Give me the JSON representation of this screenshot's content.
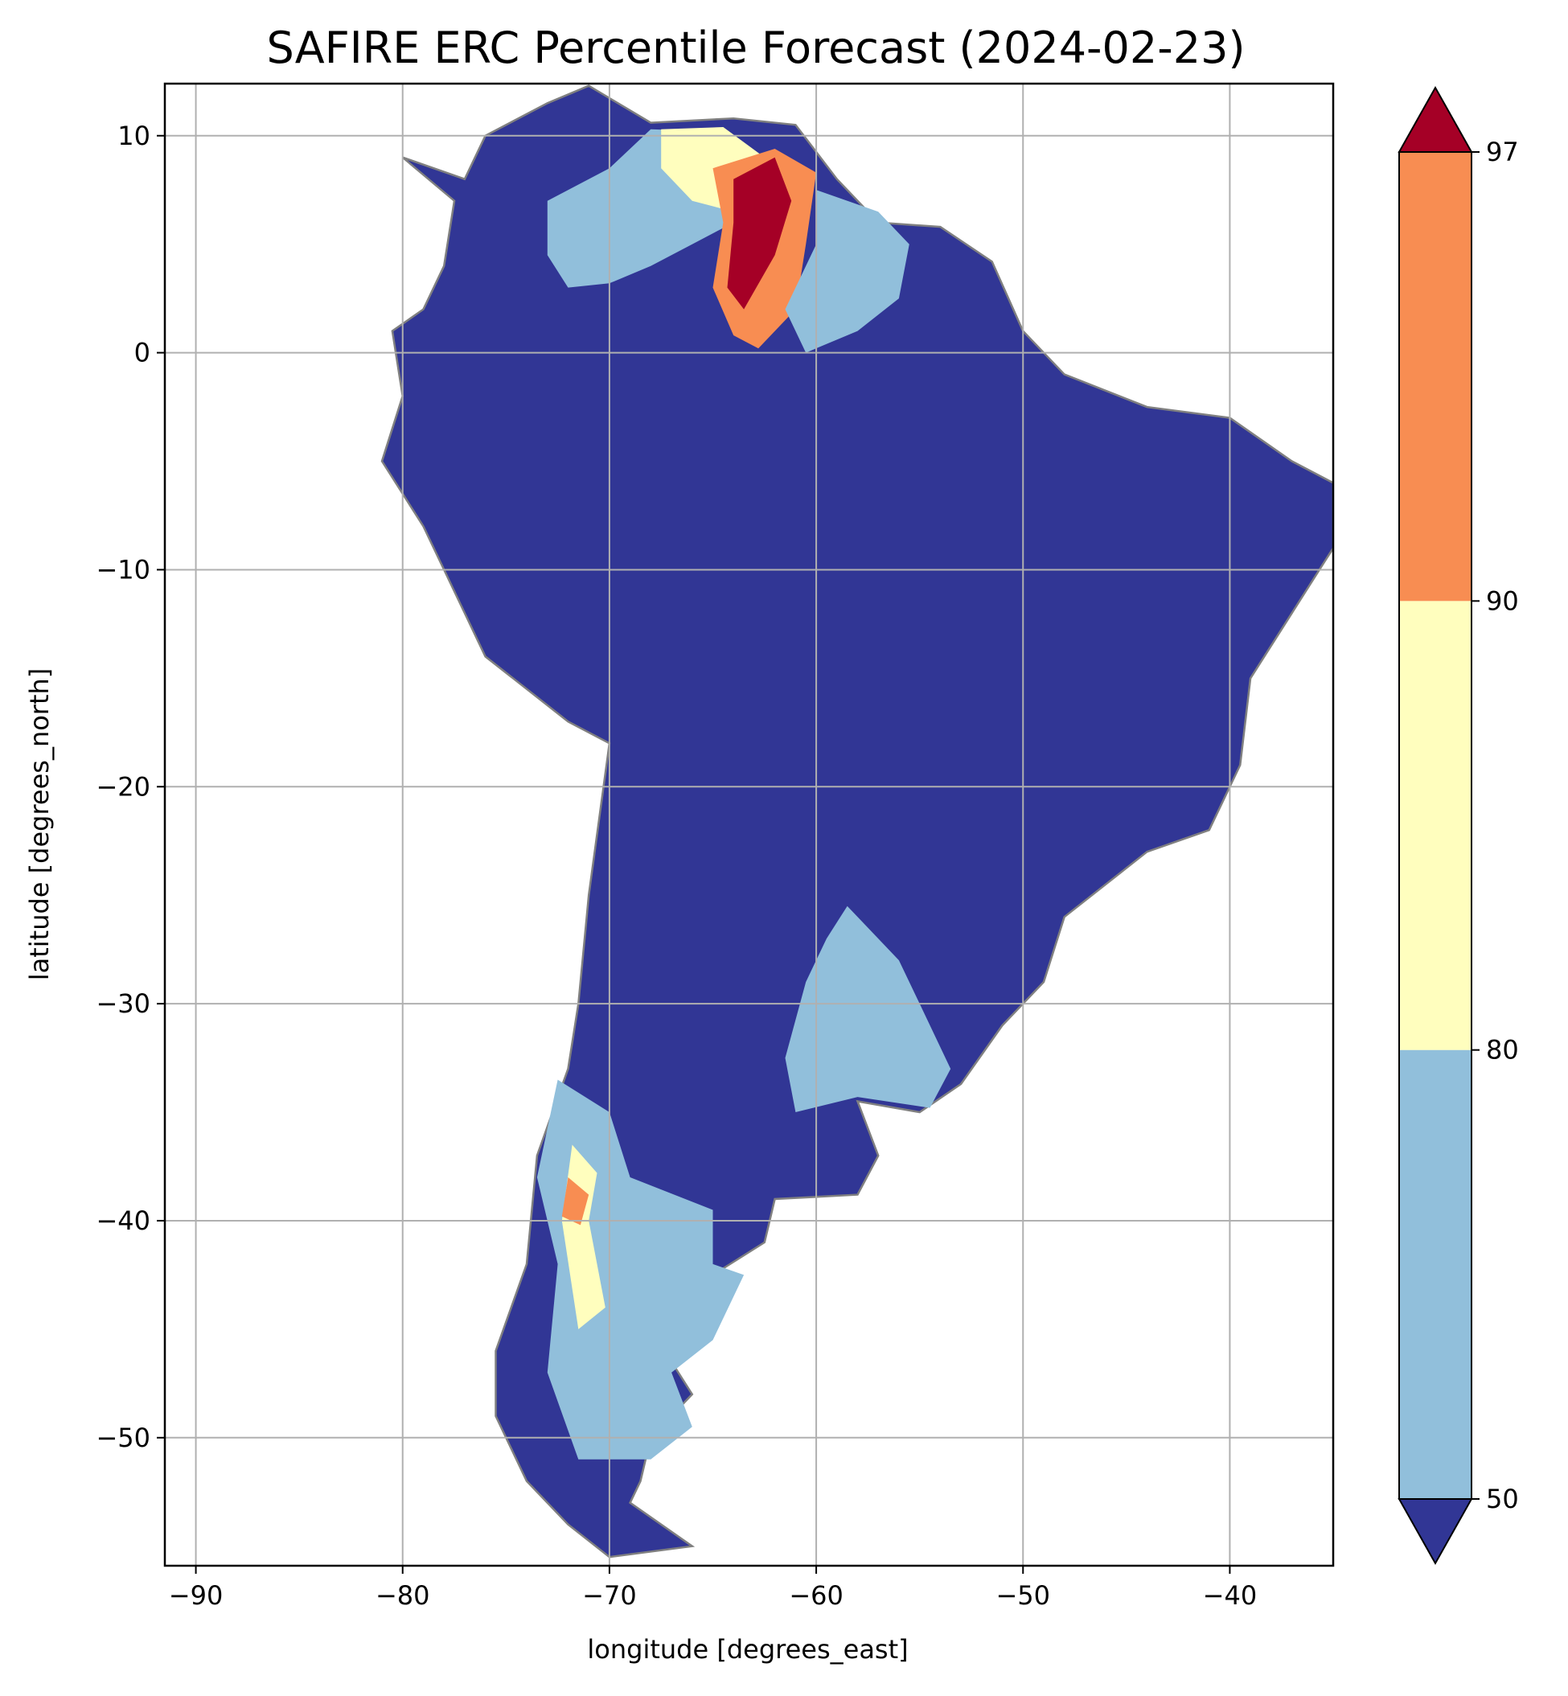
{
  "title": "SAFIRE ERC Percentile Forecast (2024-02-23)",
  "map": {
    "xlabel": "longitude [degrees_east]",
    "ylabel": "latitude [degrees_north]",
    "xlim": [
      -91.5,
      -35
    ],
    "ylim": [
      -55.9,
      12.4
    ],
    "xticks": [
      -90,
      -80,
      -70,
      -60,
      -50,
      -40
    ],
    "yticks": [
      10,
      0,
      -10,
      -20,
      -30,
      -40,
      -50
    ],
    "xtick_labels": [
      "−90",
      "−80",
      "−70",
      "−60",
      "−50",
      "−40"
    ],
    "ytick_labels": [
      "10",
      "0",
      "−10",
      "−20",
      "−30",
      "−40",
      "−50"
    ],
    "grid": true,
    "background_class_color": "#313695",
    "border_color": "#808080",
    "regions": [
      {
        "name": "continent",
        "color": "#313695",
        "outline": [
          [
            -80,
            9
          ],
          [
            -77,
            8
          ],
          [
            -76,
            10
          ],
          [
            -73,
            11.5
          ],
          [
            -71,
            12.3
          ],
          [
            -68,
            10.6
          ],
          [
            -64,
            10.8
          ],
          [
            -61,
            10.5
          ],
          [
            -59,
            8
          ],
          [
            -57,
            6
          ],
          [
            -54,
            5.8
          ],
          [
            -51.5,
            4.2
          ],
          [
            -50,
            1
          ],
          [
            -48,
            -1
          ],
          [
            -44,
            -2.5
          ],
          [
            -40,
            -3
          ],
          [
            -37,
            -5
          ],
          [
            -35,
            -6
          ],
          [
            -35,
            -9
          ],
          [
            -37,
            -12
          ],
          [
            -39,
            -15
          ],
          [
            -39.5,
            -19
          ],
          [
            -41,
            -22
          ],
          [
            -44,
            -23
          ],
          [
            -48,
            -26
          ],
          [
            -49,
            -29
          ],
          [
            -51,
            -31
          ],
          [
            -53,
            -33.7
          ],
          [
            -55,
            -35
          ],
          [
            -58,
            -34.5
          ],
          [
            -57,
            -37
          ],
          [
            -58,
            -38.8
          ],
          [
            -62,
            -39
          ],
          [
            -62.5,
            -41
          ],
          [
            -65,
            -42.5
          ],
          [
            -64,
            -43
          ],
          [
            -65,
            -45
          ],
          [
            -67,
            -46.5
          ],
          [
            -66,
            -48
          ],
          [
            -68,
            -50
          ],
          [
            -68.5,
            -52
          ],
          [
            -69,
            -53
          ],
          [
            -66,
            -55
          ],
          [
            -70,
            -55.5
          ],
          [
            -72,
            -54
          ],
          [
            -74,
            -52
          ],
          [
            -75.5,
            -49
          ],
          [
            -75.5,
            -46
          ],
          [
            -74,
            -42
          ],
          [
            -73.5,
            -37
          ],
          [
            -72,
            -33
          ],
          [
            -71.5,
            -30
          ],
          [
            -71,
            -25
          ],
          [
            -70,
            -18
          ],
          [
            -72,
            -17
          ],
          [
            -76,
            -14
          ],
          [
            -77,
            -12
          ],
          [
            -79,
            -8
          ],
          [
            -81,
            -5
          ],
          [
            -80,
            -2
          ],
          [
            -80.5,
            1
          ],
          [
            -79,
            2
          ],
          [
            -78,
            4
          ],
          [
            -77.5,
            7
          ],
          [
            -80,
            9
          ]
        ]
      },
      {
        "name": "venezuela-colombia-light-blue",
        "color": "#91bfdb",
        "outline": [
          [
            -73,
            7
          ],
          [
            -70,
            8.5
          ],
          [
            -68,
            10.3
          ],
          [
            -65,
            10.2
          ],
          [
            -62,
            8
          ],
          [
            -64,
            6
          ],
          [
            -66,
            5
          ],
          [
            -68,
            4
          ],
          [
            -70,
            3.2
          ],
          [
            -72,
            3
          ],
          [
            -73,
            4.5
          ]
        ]
      },
      {
        "name": "venezuela-yellow",
        "color": "#fffebe",
        "outline": [
          [
            -67.5,
            10.3
          ],
          [
            -64.5,
            10.4
          ],
          [
            -62.5,
            9
          ],
          [
            -64,
            6.5
          ],
          [
            -66,
            7
          ],
          [
            -67.5,
            8.5
          ]
        ]
      },
      {
        "name": "venezuela-north-orange",
        "color": "#f88d52",
        "outline": [
          [
            -65,
            8.5
          ],
          [
            -62,
            9.4
          ],
          [
            -60,
            8.3
          ],
          [
            -60.5,
            5
          ],
          [
            -61,
            2
          ],
          [
            -62.8,
            0.2
          ],
          [
            -64,
            0.8
          ],
          [
            -65,
            3
          ],
          [
            -64.5,
            6
          ]
        ]
      },
      {
        "name": "venezuela-red-core",
        "color": "#a50026",
        "outline": [
          [
            -64,
            8
          ],
          [
            -62,
            9
          ],
          [
            -61.2,
            7
          ],
          [
            -62,
            4.5
          ],
          [
            -63.5,
            2
          ],
          [
            -64.3,
            3
          ],
          [
            -64,
            6
          ]
        ]
      },
      {
        "name": "guyana-light-blue",
        "color": "#91bfdb",
        "outline": [
          [
            -60,
            7.5
          ],
          [
            -57,
            6.5
          ],
          [
            -55.5,
            5
          ],
          [
            -56,
            2.5
          ],
          [
            -58,
            1
          ],
          [
            -60.5,
            0
          ],
          [
            -61.5,
            2
          ],
          [
            -60,
            5
          ]
        ]
      },
      {
        "name": "pampas-light-blue",
        "color": "#91bfdb",
        "outline": [
          [
            -58.5,
            -25.5
          ],
          [
            -56,
            -28
          ],
          [
            -55,
            -30
          ],
          [
            -53.5,
            -33
          ],
          [
            -54.5,
            -34.8
          ],
          [
            -58,
            -34.3
          ],
          [
            -61,
            -35
          ],
          [
            -61.5,
            -32.5
          ],
          [
            -60.5,
            -29
          ],
          [
            -59.5,
            -27
          ]
        ]
      },
      {
        "name": "patagonia-light-blue",
        "color": "#91bfdb",
        "outline": [
          [
            -72.5,
            -33.5
          ],
          [
            -70,
            -35
          ],
          [
            -69,
            -38
          ],
          [
            -65,
            -39.5
          ],
          [
            -65,
            -42
          ],
          [
            -63.5,
            -42.5
          ],
          [
            -65,
            -45.5
          ],
          [
            -67,
            -47
          ],
          [
            -66,
            -49.5
          ],
          [
            -68,
            -51
          ],
          [
            -71.5,
            -51
          ],
          [
            -73,
            -47
          ],
          [
            -72.5,
            -42
          ],
          [
            -73.5,
            -38
          ]
        ]
      },
      {
        "name": "chile-yellow",
        "color": "#fffebe",
        "outline": [
          [
            -71.8,
            -36.5
          ],
          [
            -70.6,
            -37.8
          ],
          [
            -71,
            -40
          ],
          [
            -70.2,
            -44
          ],
          [
            -71.5,
            -45
          ],
          [
            -72.3,
            -40
          ]
        ]
      },
      {
        "name": "chile-orange",
        "color": "#f88d52",
        "outline": [
          [
            -72,
            -38
          ],
          [
            -71,
            -38.8
          ],
          [
            -71.4,
            -40.2
          ],
          [
            -72.3,
            -39.8
          ]
        ]
      }
    ]
  },
  "colorbar": {
    "ticks": [
      "97",
      "90",
      "80",
      "50"
    ],
    "segments": [
      {
        "from": 50,
        "to": 80,
        "color": "#91bfdb"
      },
      {
        "from": 80,
        "to": 90,
        "color": "#fffebe"
      },
      {
        "from": 90,
        "to": 97,
        "color": "#f88d52"
      }
    ],
    "over_color": "#a50026",
    "under_color": "#313695"
  }
}
